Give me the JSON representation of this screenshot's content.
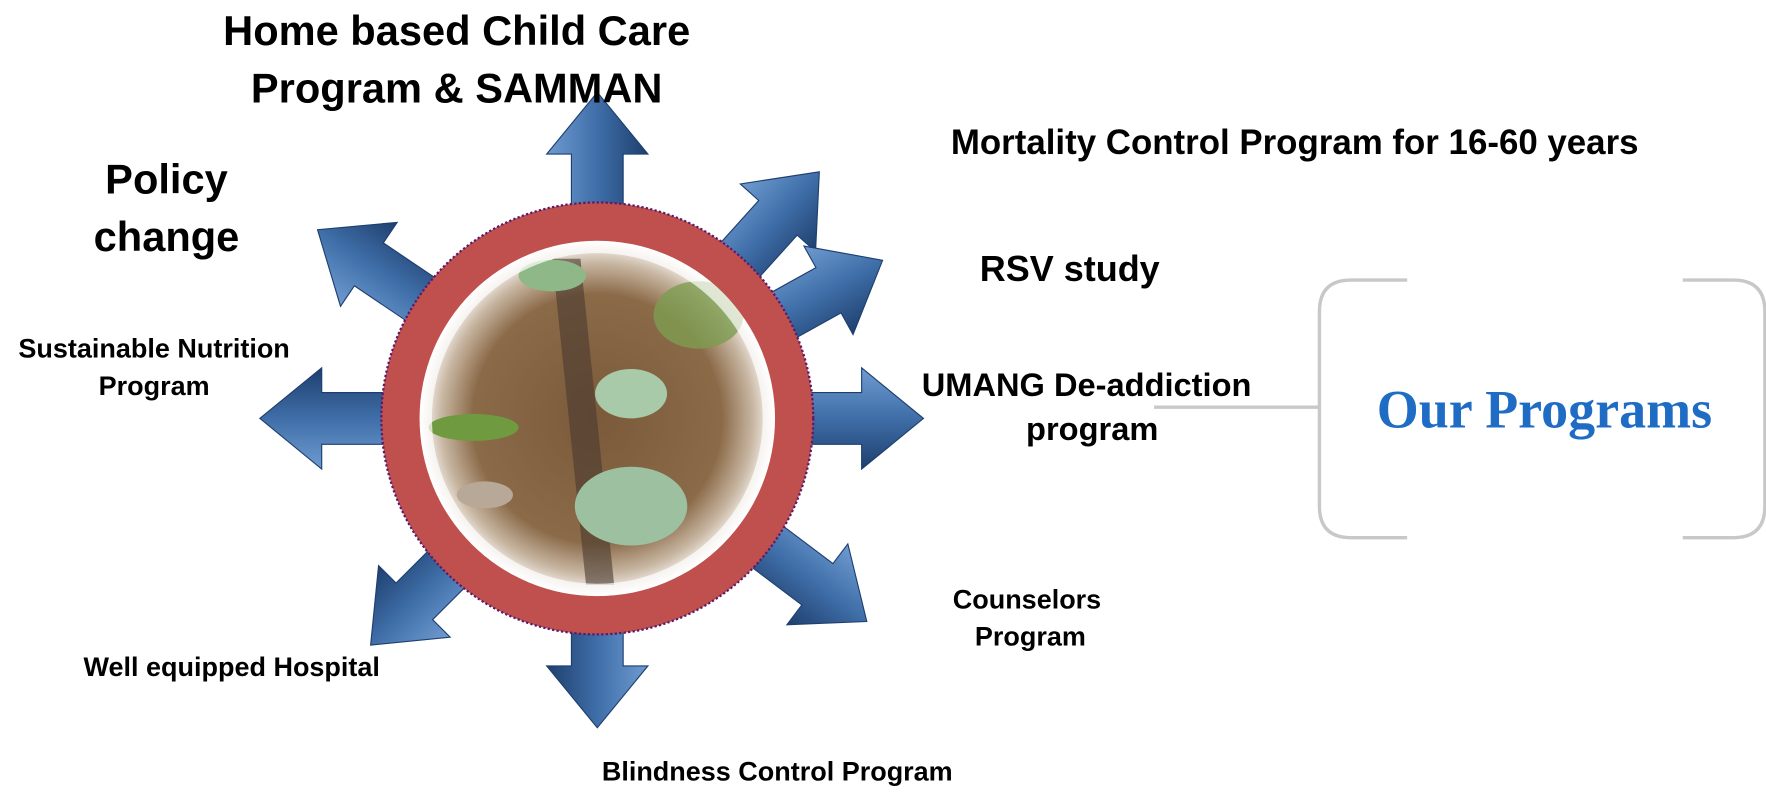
{
  "title": "Our Programs",
  "programs": [
    {
      "lines": [
        "Home based Child Care",
        "Program &  SAMMAN"
      ]
    },
    {
      "lines": [
        "Mortality Control Program  for  16-60 years"
      ]
    },
    {
      "lines": [
        "Policy",
        "change"
      ]
    },
    {
      "lines": [
        "RSV study"
      ]
    },
    {
      "lines": [
        "Sustainable Nutrition",
        "Program"
      ]
    },
    {
      "lines": [
        "UMANG De-addiction",
        "program"
      ]
    },
    {
      "lines": [
        "Counselors",
        "Program"
      ]
    },
    {
      "lines": [
        "Well equipped  Hospital"
      ]
    },
    {
      "lines": [
        "Blindness Control Program"
      ]
    }
  ]
}
